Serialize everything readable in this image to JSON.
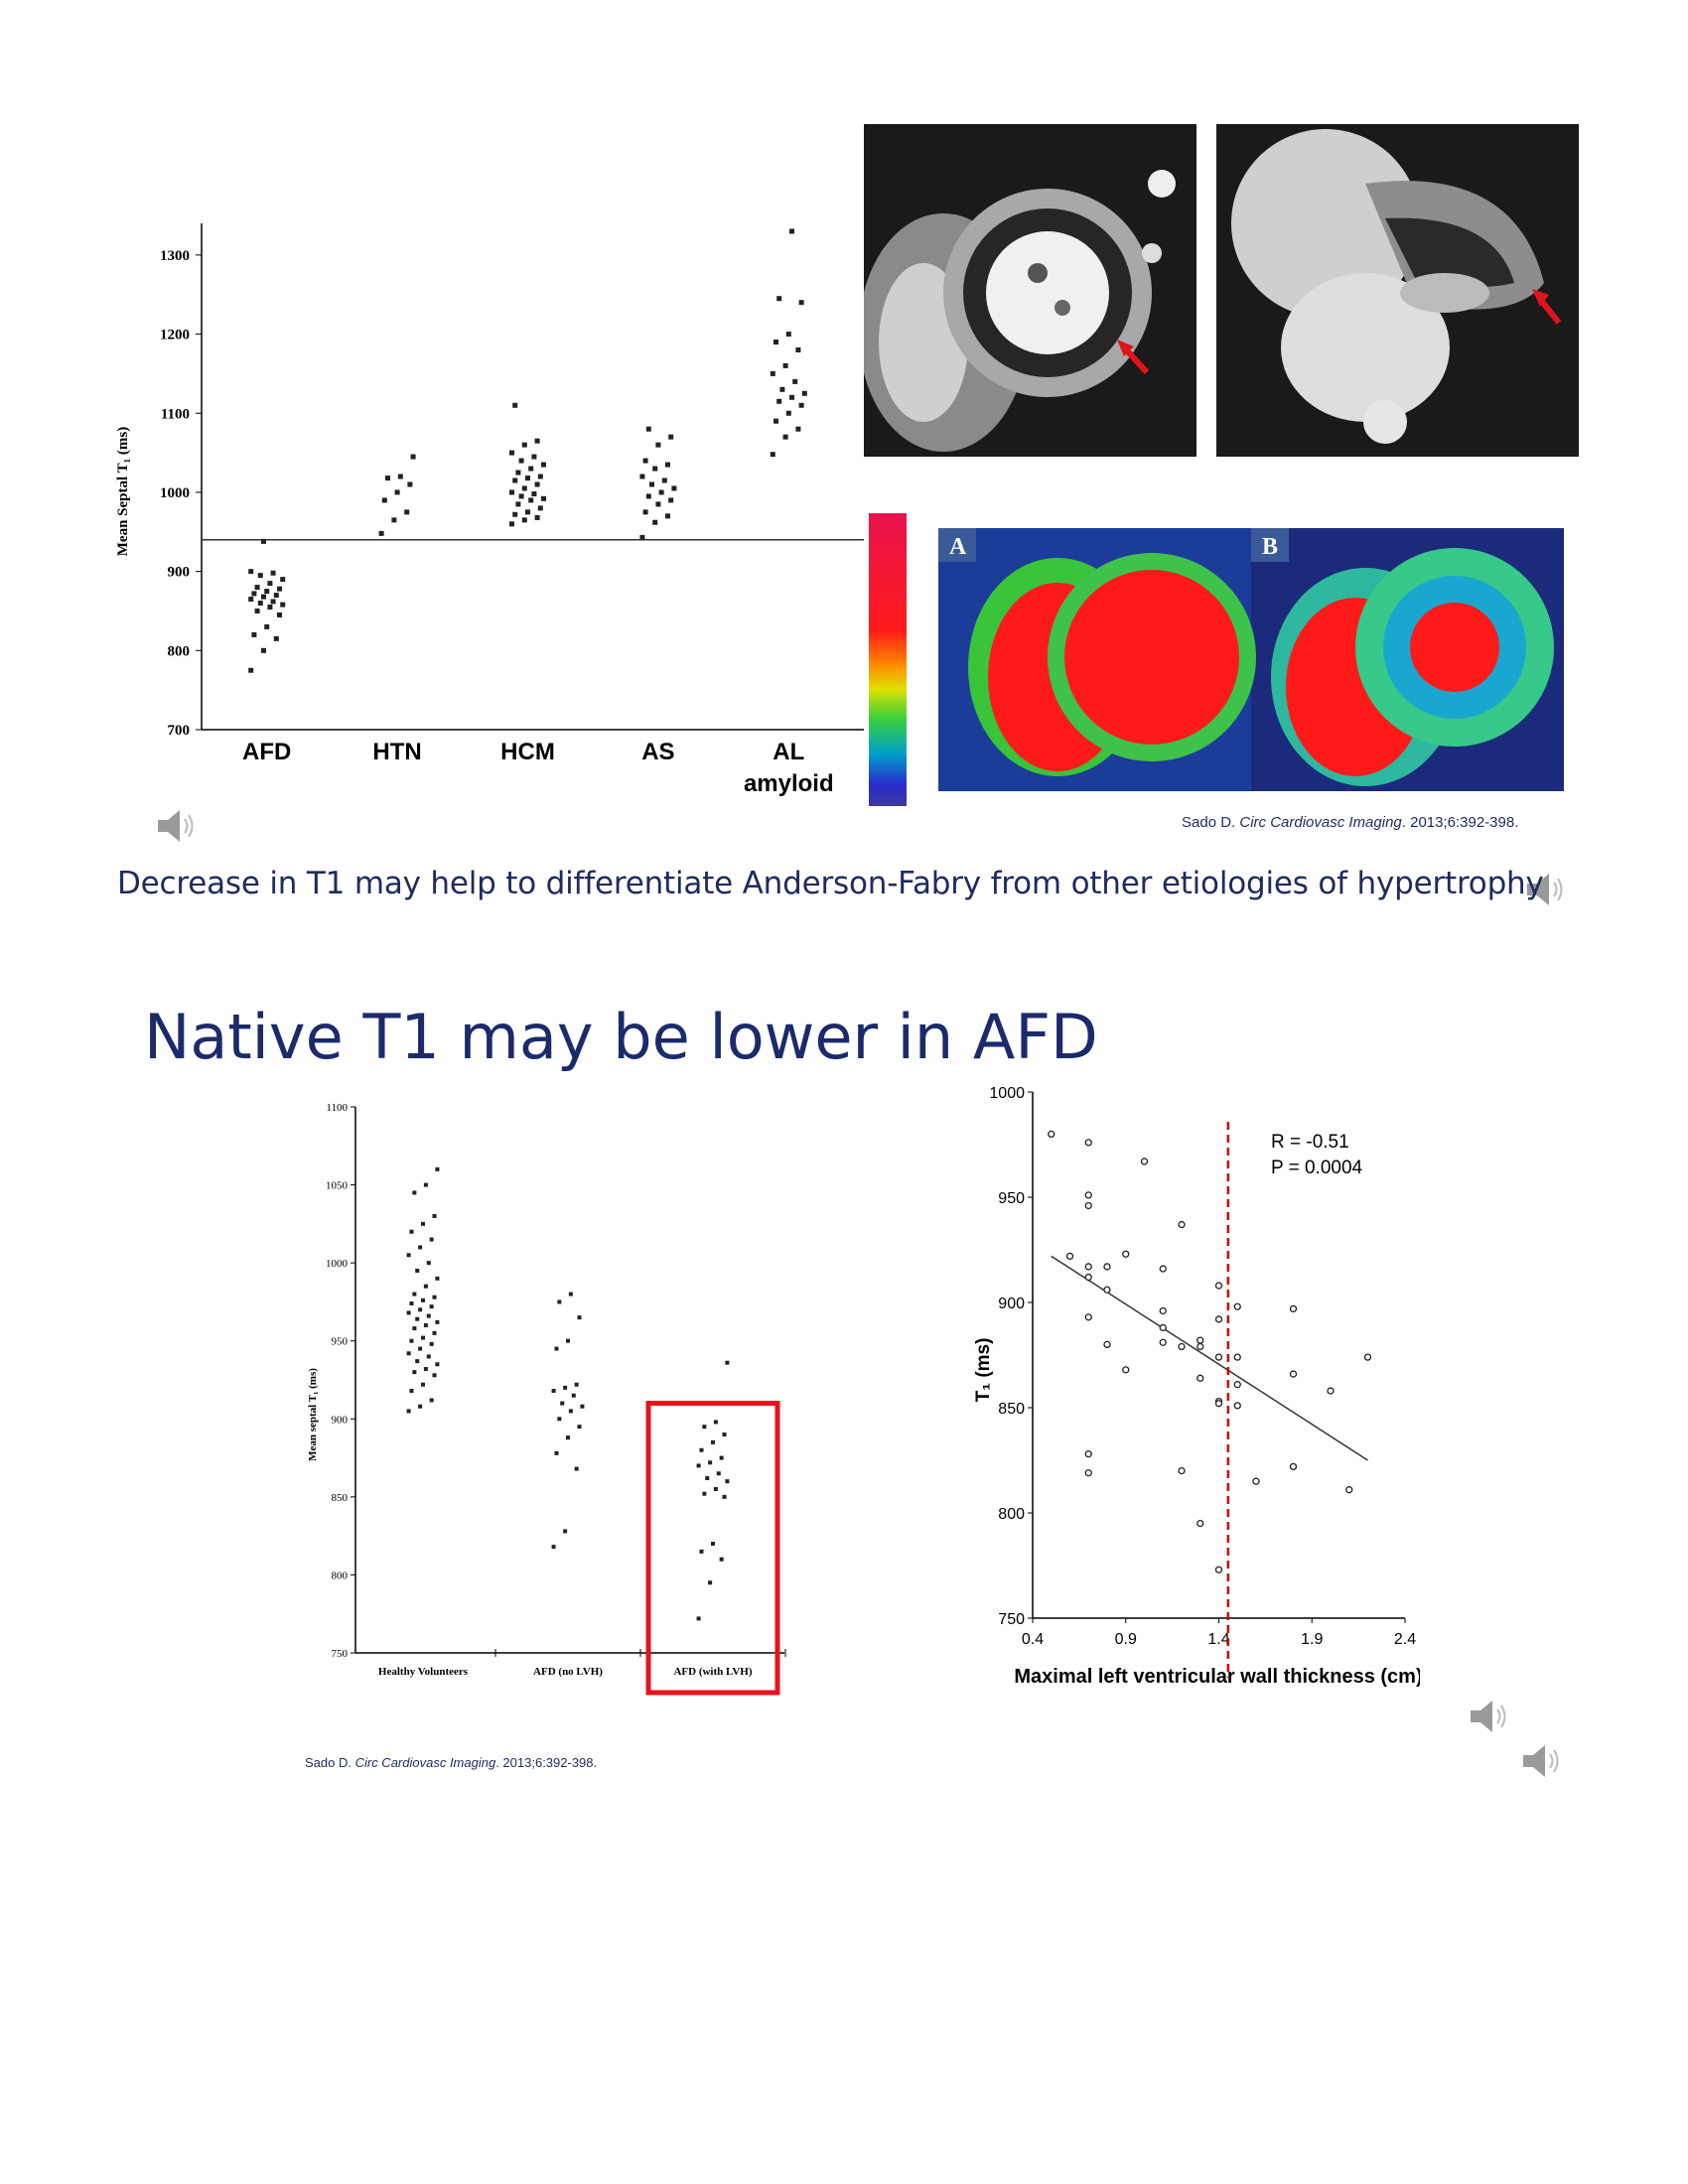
{
  "chart_data": [
    {
      "type": "scatter",
      "ylabel": "Mean Septal T₁ (ms)",
      "xlabel": "",
      "categories": [
        "AFD",
        "HTN",
        "HCM",
        "AS",
        "AL amyloid"
      ],
      "category_labels": [
        [
          "AFD"
        ],
        [
          "HTN"
        ],
        [
          "HCM"
        ],
        [
          "AS"
        ],
        [
          "AL",
          "amyloid"
        ]
      ],
      "ylim": [
        700,
        1340
      ],
      "yticks": [
        700,
        800,
        900,
        1000,
        1100,
        1200,
        1300
      ],
      "threshold": 940,
      "series": [
        {
          "values": [
            [
              0,
              775
            ],
            [
              0,
              800
            ],
            [
              0,
              815
            ],
            [
              0,
              820
            ],
            [
              0,
              830
            ],
            [
              0,
              845
            ],
            [
              0,
              850
            ],
            [
              0,
              855
            ],
            [
              0,
              858
            ],
            [
              0,
              860
            ],
            [
              0,
              862
            ],
            [
              0,
              865
            ],
            [
              0,
              868
            ],
            [
              0,
              870
            ],
            [
              0,
              872
            ],
            [
              0,
              875
            ],
            [
              0,
              878
            ],
            [
              0,
              880
            ],
            [
              0,
              885
            ],
            [
              0,
              890
            ],
            [
              0,
              895
            ],
            [
              0,
              898
            ],
            [
              0,
              900
            ],
            [
              0,
              938
            ]
          ]
        },
        {
          "values": [
            [
              1,
              948
            ],
            [
              1,
              965
            ],
            [
              1,
              975
            ],
            [
              1,
              990
            ],
            [
              1,
              1000
            ],
            [
              1,
              1010
            ],
            [
              1,
              1018
            ],
            [
              1,
              1020
            ],
            [
              1,
              1045
            ]
          ]
        },
        {
          "values": [
            [
              2,
              960
            ],
            [
              2,
              965
            ],
            [
              2,
              968
            ],
            [
              2,
              972
            ],
            [
              2,
              975
            ],
            [
              2,
              980
            ],
            [
              2,
              985
            ],
            [
              2,
              990
            ],
            [
              2,
              992
            ],
            [
              2,
              995
            ],
            [
              2,
              998
            ],
            [
              2,
              1000
            ],
            [
              2,
              1005
            ],
            [
              2,
              1010
            ],
            [
              2,
              1015
            ],
            [
              2,
              1018
            ],
            [
              2,
              1020
            ],
            [
              2,
              1025
            ],
            [
              2,
              1030
            ],
            [
              2,
              1035
            ],
            [
              2,
              1040
            ],
            [
              2,
              1045
            ],
            [
              2,
              1050
            ],
            [
              2,
              1060
            ],
            [
              2,
              1065
            ],
            [
              2,
              1110
            ]
          ]
        },
        {
          "values": [
            [
              3,
              943
            ],
            [
              3,
              962
            ],
            [
              3,
              970
            ],
            [
              3,
              975
            ],
            [
              3,
              985
            ],
            [
              3,
              990
            ],
            [
              3,
              995
            ],
            [
              3,
              1000
            ],
            [
              3,
              1005
            ],
            [
              3,
              1010
            ],
            [
              3,
              1015
            ],
            [
              3,
              1020
            ],
            [
              3,
              1030
            ],
            [
              3,
              1035
            ],
            [
              3,
              1040
            ],
            [
              3,
              1060
            ],
            [
              3,
              1070
            ],
            [
              3,
              1080
            ]
          ]
        },
        {
          "values": [
            [
              4,
              1048
            ],
            [
              4,
              1070
            ],
            [
              4,
              1080
            ],
            [
              4,
              1090
            ],
            [
              4,
              1100
            ],
            [
              4,
              1110
            ],
            [
              4,
              1115
            ],
            [
              4,
              1120
            ],
            [
              4,
              1125
            ],
            [
              4,
              1130
            ],
            [
              4,
              1140
            ],
            [
              4,
              1150
            ],
            [
              4,
              1160
            ],
            [
              4,
              1180
            ],
            [
              4,
              1190
            ],
            [
              4,
              1200
            ],
            [
              4,
              1240
            ],
            [
              4,
              1245
            ],
            [
              4,
              1330
            ]
          ]
        }
      ]
    },
    {
      "type": "scatter",
      "ylabel": "Mean septal T₁ (ms)",
      "xlabel": "",
      "categories": [
        "Healthy Volunteers",
        "AFD  (no LVH)",
        "AFD (with LVH)"
      ],
      "ylim": [
        750,
        1100
      ],
      "yticks": [
        750,
        800,
        850,
        900,
        950,
        1000,
        1050,
        1100
      ],
      "highlight_category": 2,
      "series": [
        {
          "values": [
            [
              0,
              905
            ],
            [
              0,
              908
            ],
            [
              0,
              912
            ],
            [
              0,
              918
            ],
            [
              0,
              922
            ],
            [
              0,
              928
            ],
            [
              0,
              930
            ],
            [
              0,
              932
            ],
            [
              0,
              935
            ],
            [
              0,
              937
            ],
            [
              0,
              940
            ],
            [
              0,
              942
            ],
            [
              0,
              945
            ],
            [
              0,
              948
            ],
            [
              0,
              950
            ],
            [
              0,
              952
            ],
            [
              0,
              955
            ],
            [
              0,
              958
            ],
            [
              0,
              960
            ],
            [
              0,
              962
            ],
            [
              0,
              964
            ],
            [
              0,
              966
            ],
            [
              0,
              968
            ],
            [
              0,
              970
            ],
            [
              0,
              972
            ],
            [
              0,
              974
            ],
            [
              0,
              976
            ],
            [
              0,
              978
            ],
            [
              0,
              980
            ],
            [
              0,
              985
            ],
            [
              0,
              990
            ],
            [
              0,
              995
            ],
            [
              0,
              1000
            ],
            [
              0,
              1005
            ],
            [
              0,
              1010
            ],
            [
              0,
              1015
            ],
            [
              0,
              1020
            ],
            [
              0,
              1025
            ],
            [
              0,
              1030
            ],
            [
              0,
              1045
            ],
            [
              0,
              1050
            ],
            [
              0,
              1060
            ]
          ]
        },
        {
          "values": [
            [
              1,
              818
            ],
            [
              1,
              828
            ],
            [
              1,
              868
            ],
            [
              1,
              878
            ],
            [
              1,
              888
            ],
            [
              1,
              895
            ],
            [
              1,
              900
            ],
            [
              1,
              905
            ],
            [
              1,
              908
            ],
            [
              1,
              910
            ],
            [
              1,
              915
            ],
            [
              1,
              918
            ],
            [
              1,
              920
            ],
            [
              1,
              922
            ],
            [
              1,
              945
            ],
            [
              1,
              950
            ],
            [
              1,
              965
            ],
            [
              1,
              975
            ],
            [
              1,
              980
            ]
          ]
        },
        {
          "values": [
            [
              2,
              772
            ],
            [
              2,
              795
            ],
            [
              2,
              810
            ],
            [
              2,
              815
            ],
            [
              2,
              820
            ],
            [
              2,
              850
            ],
            [
              2,
              852
            ],
            [
              2,
              855
            ],
            [
              2,
              860
            ],
            [
              2,
              862
            ],
            [
              2,
              865
            ],
            [
              2,
              870
            ],
            [
              2,
              872
            ],
            [
              2,
              875
            ],
            [
              2,
              880
            ],
            [
              2,
              885
            ],
            [
              2,
              890
            ],
            [
              2,
              895
            ],
            [
              2,
              898
            ],
            [
              2,
              936
            ]
          ]
        }
      ]
    },
    {
      "type": "scatter",
      "xlabel": "Maximal left ventricular wall thickness (cm)",
      "ylabel": "T₁ (ms)",
      "xlim": [
        0.4,
        2.4
      ],
      "ylim": [
        750,
        1000
      ],
      "xticks": [
        "0.4",
        "0.9",
        "1.4",
        "1.9",
        "2.4"
      ],
      "yticks": [
        "750",
        "800",
        "850",
        "900",
        "950",
        "1000"
      ],
      "annotations": [
        "R = -0.51",
        "P = 0.0004"
      ],
      "cutoff_x": 1.45,
      "trendline": [
        [
          0.5,
          922
        ],
        [
          2.2,
          825
        ]
      ],
      "points": [
        [
          0.5,
          980
        ],
        [
          0.6,
          922
        ],
        [
          0.7,
          976
        ],
        [
          0.7,
          951
        ],
        [
          0.7,
          946
        ],
        [
          0.7,
          917
        ],
        [
          0.7,
          912
        ],
        [
          0.7,
          893
        ],
        [
          0.7,
          828
        ],
        [
          0.7,
          819
        ],
        [
          0.8,
          917
        ],
        [
          0.8,
          906
        ],
        [
          0.8,
          880
        ],
        [
          0.9,
          923
        ],
        [
          0.9,
          868
        ],
        [
          1.0,
          967
        ],
        [
          1.1,
          916
        ],
        [
          1.1,
          896
        ],
        [
          1.1,
          888
        ],
        [
          1.1,
          881
        ],
        [
          1.2,
          937
        ],
        [
          1.2,
          879
        ],
        [
          1.2,
          820
        ],
        [
          1.3,
          882
        ],
        [
          1.3,
          879
        ],
        [
          1.3,
          864
        ],
        [
          1.3,
          795
        ],
        [
          1.4,
          908
        ],
        [
          1.4,
          892
        ],
        [
          1.4,
          874
        ],
        [
          1.4,
          853
        ],
        [
          1.4,
          852
        ],
        [
          1.4,
          773
        ],
        [
          1.5,
          898
        ],
        [
          1.5,
          874
        ],
        [
          1.5,
          861
        ],
        [
          1.5,
          851
        ],
        [
          1.6,
          815
        ],
        [
          1.8,
          897
        ],
        [
          1.8,
          866
        ],
        [
          1.8,
          822
        ],
        [
          2.0,
          858
        ],
        [
          2.1,
          811
        ],
        [
          2.2,
          874
        ]
      ]
    }
  ],
  "caption": "Decrease in T1 may help to differentiate Anderson-Fabry from other etiologies of hypertrophy",
  "slide_title": "Native T1 may be lower in AFD",
  "citations": [
    {
      "author": "Sado D. ",
      "journal": "Circ Cardiovasc Imaging",
      "details": ". 2013;6:392-398."
    },
    {
      "author": "Sado D. ",
      "journal": "Circ Cardiovasc Imaging",
      "details": ". 2013;6:392-398."
    }
  ],
  "mri_labels": {
    "panel_a": "A",
    "panel_b": "B"
  },
  "colors": {
    "axis": "#000000",
    "cutoff": "#cc0000",
    "highlight": "#e8121b",
    "title": "#1c2a6b",
    "caption": "#1f2a5e"
  },
  "icons": [
    "speaker-icon"
  ]
}
